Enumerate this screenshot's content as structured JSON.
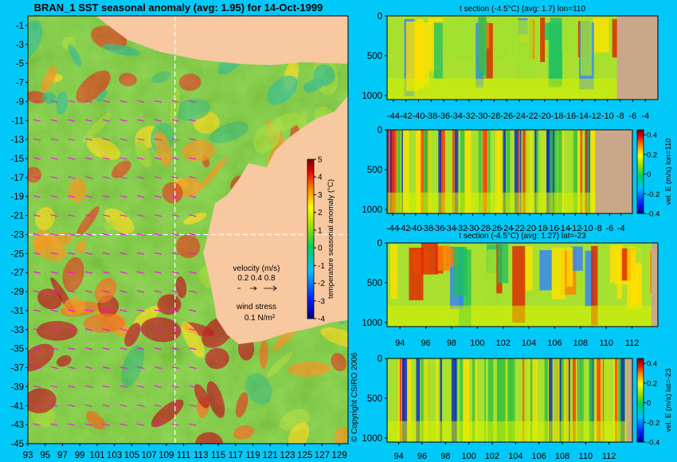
{
  "colors": {
    "background": "#00c8f8",
    "land": "#f8c8a0",
    "seafloor": "#c8a888",
    "vectors": "#ff00ff"
  },
  "labels": {
    "copyright": "© Copyright CSIRO 2006",
    "velocity_legend_title": "velocity (m/s)",
    "velocity_legend_values": "0.2 0.4 0.8",
    "wind_legend_title": "wind stress",
    "wind_legend_value": "0.1 N/m²"
  },
  "chart_data": [
    {
      "type": "heatmap",
      "title": "BRAN_1  SST seasonal anomaly (avg: 1.95) for 14-Oct-1999",
      "xlim": [
        93,
        130
      ],
      "ylim": [
        -45,
        0
      ],
      "x_ticks": [
        93,
        95,
        97,
        99,
        101,
        103,
        105,
        107,
        109,
        111,
        113,
        115,
        117,
        119,
        121,
        123,
        125,
        127,
        129
      ],
      "y_ticks": [
        -1,
        -3,
        -5,
        -7,
        -9,
        -11,
        -13,
        -15,
        -17,
        -19,
        -21,
        -23,
        -25,
        -27,
        -29,
        -31,
        -33,
        -35,
        -37,
        -39,
        -41,
        -43,
        -45
      ],
      "guide_lines": {
        "lon": 110,
        "lat": -23
      },
      "colorbar": {
        "label": "temperature seasonal anomaly (°C)",
        "range": [
          -4,
          5
        ],
        "ticks": [
          5,
          4,
          3,
          2,
          1,
          0,
          -1,
          -2,
          -3,
          -4
        ]
      }
    },
    {
      "type": "heatmap",
      "title": "t section (-4.5°C) (avg: 1.7) lon=110",
      "x_ticks": [
        -44,
        -42,
        -40,
        -38,
        -36,
        -34,
        -32,
        -30,
        -28,
        -26,
        -24,
        -22,
        -20,
        -18,
        -16,
        -14,
        -12,
        -10,
        -8,
        -6,
        -4
      ],
      "xlim": [
        -45,
        -2
      ],
      "y_ticks": [
        0,
        500,
        1000
      ],
      "ylim": [
        0,
        1050
      ],
      "land_from_x": -8.5
    },
    {
      "type": "heatmap",
      "title": "",
      "x_ticks": [
        -44,
        -42,
        -40,
        -38,
        -36,
        -34,
        -32,
        -30,
        -28,
        -26,
        -24,
        -22,
        -20,
        -18,
        -16,
        -14,
        -12,
        -10,
        -8,
        -6,
        -4
      ],
      "xlim": [
        -45,
        -2
      ],
      "y_ticks": [
        0,
        500,
        1000
      ],
      "ylim": [
        0,
        1050
      ],
      "land_from_x": -8.5,
      "colorbar": {
        "label": "vel. E (m/s) lon=110",
        "range": [
          -0.4,
          0.45
        ],
        "ticks": [
          "0.4",
          "0.2",
          "0",
          "-0.2",
          "-0.4"
        ]
      }
    },
    {
      "type": "heatmap",
      "title": "t section (-4.5°C) (avg: 1.27) lat=-23",
      "x_ticks": [
        94,
        96,
        98,
        100,
        102,
        104,
        106,
        108,
        110,
        112
      ],
      "xlim": [
        93,
        114
      ],
      "y_ticks": [
        0,
        500,
        1000
      ],
      "ylim": [
        0,
        1050
      ],
      "land_from_x": 113.5
    },
    {
      "type": "heatmap",
      "title": "",
      "x_ticks": [
        94,
        96,
        98,
        100,
        102,
        104,
        106,
        108,
        110,
        112
      ],
      "xlim": [
        93,
        114
      ],
      "y_ticks": [
        0,
        500,
        1000
      ],
      "ylim": [
        0,
        1050
      ],
      "land_from_x": 113.5,
      "colorbar": {
        "label": "vel. E (m/s) lat=-23",
        "range": [
          -0.4,
          0.45
        ],
        "ticks": [
          "0.4",
          "0.2",
          "0",
          "-0.2",
          "-0.4"
        ]
      }
    }
  ]
}
